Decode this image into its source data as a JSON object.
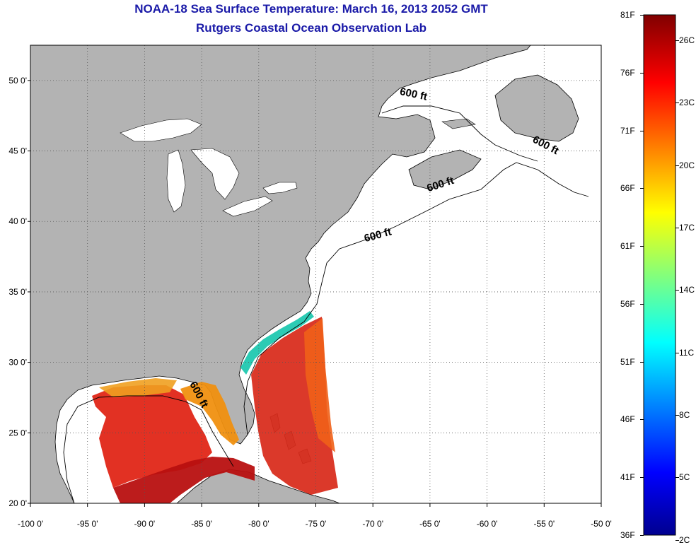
{
  "title": "NOAA-18 Sea Surface Temperature:  March 16, 2013 2052 GMT",
  "subtitle": "Rutgers Coastal Ocean Observation Lab",
  "map": {
    "lon_range": [
      -100,
      -50
    ],
    "lat_range": [
      20,
      52.5
    ],
    "lon_ticks": [
      {
        "value": -100,
        "label": "-100 0'"
      },
      {
        "value": -95,
        "label": "-95 0'"
      },
      {
        "value": -90,
        "label": "-90 0'"
      },
      {
        "value": -85,
        "label": "-85 0'"
      },
      {
        "value": -80,
        "label": "-80 0'"
      },
      {
        "value": -75,
        "label": "-75 0'"
      },
      {
        "value": -70,
        "label": "-70 0'"
      },
      {
        "value": -65,
        "label": "-65 0'"
      },
      {
        "value": -60,
        "label": "-60 0'"
      },
      {
        "value": -55,
        "label": "-55 0'"
      },
      {
        "value": -50,
        "label": "-50 0'"
      }
    ],
    "lat_ticks": [
      {
        "value": 20,
        "label": "20 0'"
      },
      {
        "value": 25,
        "label": "25 0'"
      },
      {
        "value": 30,
        "label": "30 0'"
      },
      {
        "value": 35,
        "label": "35 0'"
      },
      {
        "value": 40,
        "label": "40 0'"
      },
      {
        "value": 45,
        "label": "45 0'"
      },
      {
        "value": 50,
        "label": "50 0'"
      }
    ],
    "contour_labels": [
      {
        "text": "600 ft",
        "lon": -69.5,
        "lat": 38.8,
        "rotate": -15
      },
      {
        "text": "600 ft",
        "lon": -64,
        "lat": 42.4,
        "rotate": -18
      },
      {
        "text": "600 ft",
        "lon": -66.5,
        "lat": 48.8,
        "rotate": 12
      },
      {
        "text": "600 ft",
        "lon": -55,
        "lat": 45.2,
        "rotate": 28
      },
      {
        "text": "600 ft",
        "lon": -85.5,
        "lat": 27.6,
        "rotate": 62
      }
    ],
    "colors": {
      "land": "#b3b3b3",
      "water": "#ffffff",
      "grid": "#555555"
    }
  },
  "colorbar": {
    "fahrenheit": [
      {
        "value": 81,
        "label": "81F"
      },
      {
        "value": 76,
        "label": "76F"
      },
      {
        "value": 71,
        "label": "71F"
      },
      {
        "value": 66,
        "label": "66F"
      },
      {
        "value": 61,
        "label": "61F"
      },
      {
        "value": 56,
        "label": "56F"
      },
      {
        "value": 51,
        "label": "51F"
      },
      {
        "value": 46,
        "label": "46F"
      },
      {
        "value": 41,
        "label": "41F"
      },
      {
        "value": 36,
        "label": "36F"
      }
    ],
    "celsius": [
      {
        "value": 26,
        "label": "26C"
      },
      {
        "value": 23,
        "label": "23C"
      },
      {
        "value": 20,
        "label": "20C"
      },
      {
        "value": 17,
        "label": "17C"
      },
      {
        "value": 14,
        "label": "14C"
      },
      {
        "value": 11,
        "label": "11C"
      },
      {
        "value": 8,
        "label": "8C"
      },
      {
        "value": 5,
        "label": "5C"
      },
      {
        "value": 2,
        "label": "2C"
      }
    ],
    "range_f": [
      36,
      81
    ]
  }
}
